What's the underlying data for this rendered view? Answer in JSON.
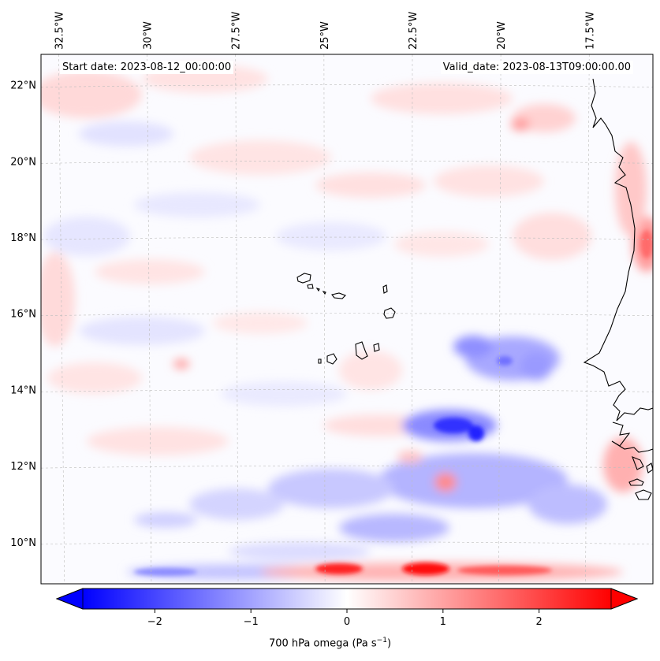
{
  "header": {
    "start_date": "Start date: 2023-08-12_00:00:00",
    "valid_date": "Valid_date: 2023-08-13T09:00:00.00"
  },
  "map": {
    "lon_labels": [
      "32.5°W",
      "30°W",
      "27.5°W",
      "25°W",
      "22.5°W",
      "20°W",
      "17.5°W"
    ],
    "lon_values": [
      -32.5,
      -30,
      -27.5,
      -25,
      -22.5,
      -20,
      -17.5
    ],
    "lat_labels": [
      "22°N",
      "20°N",
      "18°N",
      "16°N",
      "14°N",
      "12°N",
      "10°N"
    ],
    "lat_values": [
      22,
      20,
      18,
      16,
      14,
      12,
      10
    ],
    "extent": {
      "lon_min": -33.0,
      "lon_max": -15.7,
      "lat_min": 8.9,
      "lat_max": 22.8
    },
    "gridlines": true
  },
  "colorbar": {
    "ticks": [
      "−2",
      "−1",
      "0",
      "1",
      "2"
    ],
    "tick_values": [
      -2,
      -1,
      0,
      1,
      2
    ],
    "vmin": -2.75,
    "vmax": 2.75,
    "extend": "both",
    "label_prefix": "700 hPa omega (Pa s",
    "label_sup": "−1",
    "label_suffix": ")",
    "cmap": "bwr",
    "colors": {
      "negative": "#0000ff",
      "zero": "#ffffff",
      "positive": "#ff0000"
    }
  }
}
